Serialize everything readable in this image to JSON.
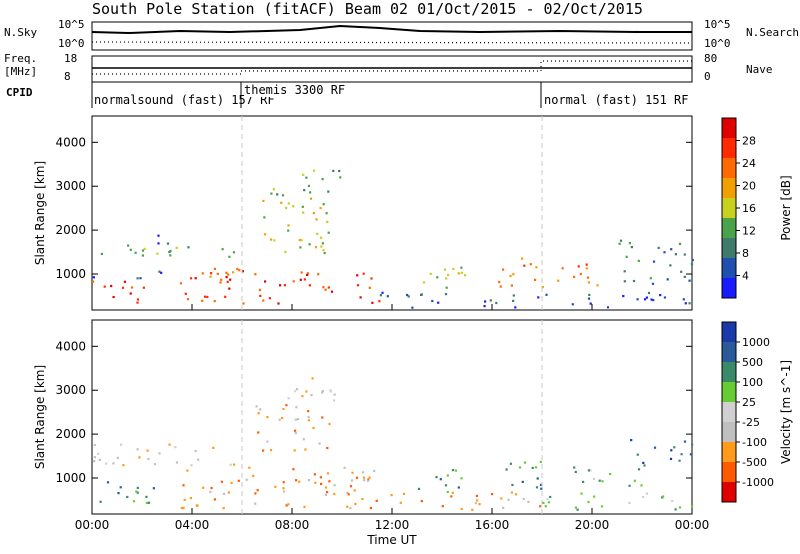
{
  "title": "South Pole Station (fitACF)   Beam 02   01/Oct/2015 - 02/Oct/2015",
  "top_panels": {
    "nsky_label": "N.Sky",
    "nsky_ticks": [
      "10^5",
      "10^0"
    ],
    "nsearch_label": "N.Search",
    "nsearch_ticks": [
      "10^5",
      "10^0"
    ],
    "freq_label": "Freq.",
    "freq_unit": "[MHz]",
    "freq_ticks": [
      "18",
      "8"
    ],
    "nave_label": "Nave",
    "nave_ticks": [
      "80",
      "0"
    ],
    "cpid_label": "CPID",
    "cpid_segments": [
      {
        "name": "normalsound (fast) 157 RF",
        "start": 0,
        "end": 6
      },
      {
        "name": "themis 3300 RF",
        "start": 6,
        "end": 18
      },
      {
        "name": "normal (fast) 151 RF",
        "start": 18,
        "end": 24
      }
    ]
  },
  "colors": {
    "power_scale": [
      "#1a1aff",
      "#1f4fb0",
      "#3f7a6a",
      "#4aa34a",
      "#c8d020",
      "#f0a000",
      "#ff6a00",
      "#ff2a00",
      "#e00000"
    ],
    "velocity_scale": [
      "#e00000",
      "#ff5a00",
      "#ff9a1a",
      "#c0c0c0",
      "#d0d0d0",
      "#66cc33",
      "#3a8a6a",
      "#2a5a9a",
      "#1a3aaa"
    ],
    "dash": "#c8c8c8"
  },
  "chart_data": [
    {
      "type": "heatmap",
      "name": "power-panel",
      "xlabel": "",
      "ylabel": "Slant Range [km]",
      "x_ticks": [
        "00:00",
        "04:00",
        "08:00",
        "12:00",
        "16:00",
        "20:00",
        "00:00"
      ],
      "xlim_hours": [
        0,
        24
      ],
      "ylim_km": [
        180,
        4600
      ],
      "y_ticks": [
        1000,
        2000,
        3000,
        4000
      ],
      "colorbar_label": "Power [dB]",
      "colorbar_ticks": [
        "28",
        "24",
        "20",
        "16",
        "12",
        "8",
        "4"
      ],
      "regions": [
        {
          "x0": 0.0,
          "x1": 2.2,
          "y0": 300,
          "y1": 900,
          "c": 7
        },
        {
          "x0": 0.0,
          "x1": 6.0,
          "y0": 1400,
          "y1": 1700,
          "c": 3
        },
        {
          "x0": 2.5,
          "x1": 4.0,
          "y0": 1600,
          "y1": 1900,
          "c": 1
        },
        {
          "x0": 0.0,
          "x1": 3.0,
          "y0": 900,
          "y1": 1100,
          "c": 1
        },
        {
          "x0": 3.5,
          "x1": 11.5,
          "y0": 350,
          "y1": 1100,
          "c": 7
        },
        {
          "x0": 4.0,
          "x1": 6.0,
          "y0": 800,
          "y1": 1200,
          "c": 5
        },
        {
          "x0": 6.5,
          "x1": 9.5,
          "y0": 1500,
          "y1": 2800,
          "c": 4
        },
        {
          "x0": 7.0,
          "x1": 10.0,
          "y0": 2800,
          "y1": 3400,
          "c": 3
        },
        {
          "x0": 11.5,
          "x1": 18.0,
          "y0": 250,
          "y1": 600,
          "c": 1
        },
        {
          "x0": 13.0,
          "x1": 15.0,
          "y0": 600,
          "y1": 1300,
          "c": 4
        },
        {
          "x0": 16.0,
          "x1": 18.0,
          "y0": 700,
          "y1": 1400,
          "c": 6
        },
        {
          "x0": 18.0,
          "x1": 24.0,
          "y0": 250,
          "y1": 600,
          "c": 1
        },
        {
          "x0": 18.5,
          "x1": 20.5,
          "y0": 700,
          "y1": 1300,
          "c": 6
        },
        {
          "x0": 21.0,
          "x1": 24.0,
          "y0": 800,
          "y1": 1800,
          "c": 2
        }
      ]
    },
    {
      "type": "heatmap",
      "name": "velocity-panel",
      "xlabel": "Time UT",
      "ylabel": "Slant Range [km]",
      "x_ticks": [
        "00:00",
        "04:00",
        "08:00",
        "12:00",
        "16:00",
        "20:00",
        "00:00"
      ],
      "xlim_hours": [
        0,
        24
      ],
      "ylim_km": [
        180,
        4600
      ],
      "y_ticks": [
        1000,
        2000,
        3000,
        4000
      ],
      "colorbar_label": "Velocity [m s^-1]",
      "colorbar_ticks": [
        "1000",
        "500",
        "100",
        "25",
        "-25",
        "-100",
        "-500",
        "-1000"
      ],
      "regions": [
        {
          "x0": 0.0,
          "x1": 2.5,
          "y0": 350,
          "y1": 950,
          "c": 6
        },
        {
          "x0": 0.0,
          "x1": 6.0,
          "y0": 1300,
          "y1": 1800,
          "c": 3
        },
        {
          "x0": 3.5,
          "x1": 11.5,
          "y0": 300,
          "y1": 1300,
          "c": 2
        },
        {
          "x0": 6.5,
          "x1": 9.5,
          "y0": 1600,
          "y1": 2700,
          "c": 2
        },
        {
          "x0": 7.5,
          "x1": 10.0,
          "y0": 2700,
          "y1": 3300,
          "c": 3
        },
        {
          "x0": 11.5,
          "x1": 18.0,
          "y0": 300,
          "y1": 700,
          "c": 2
        },
        {
          "x0": 13.0,
          "x1": 15.0,
          "y0": 700,
          "y1": 1300,
          "c": 6
        },
        {
          "x0": 16.0,
          "x1": 18.0,
          "y0": 700,
          "y1": 1500,
          "c": 6
        },
        {
          "x0": 18.0,
          "x1": 24.0,
          "y0": 300,
          "y1": 700,
          "c": 5
        },
        {
          "x0": 19.0,
          "x1": 22.0,
          "y0": 800,
          "y1": 1300,
          "c": 5
        },
        {
          "x0": 21.5,
          "x1": 24.0,
          "y0": 1300,
          "y1": 1900,
          "c": 7
        }
      ]
    }
  ]
}
